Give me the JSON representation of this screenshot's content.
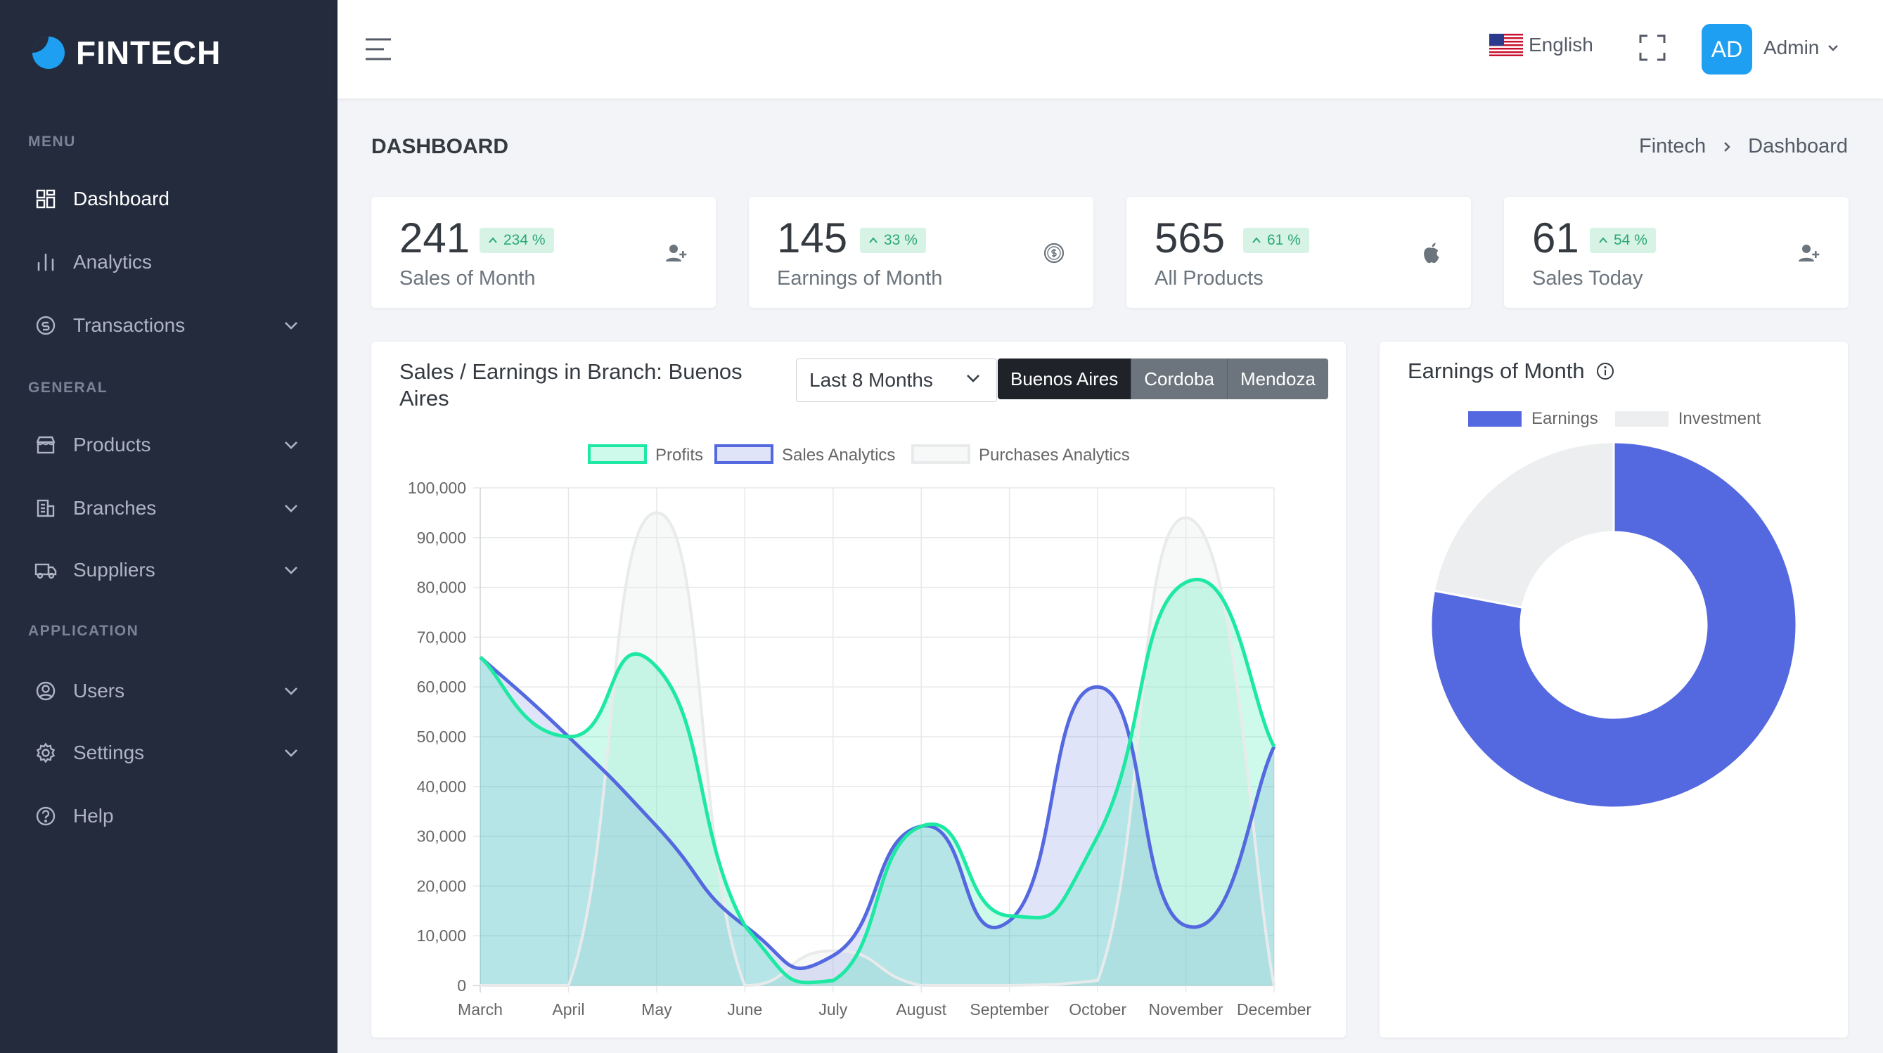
{
  "app": {
    "logo_text": "FINTECH"
  },
  "sidebar": {
    "sections": [
      {
        "title": "MENU"
      },
      {
        "title": "GENERAL"
      },
      {
        "title": "APPLICATION"
      }
    ],
    "items": [
      {
        "label": "Dashboard",
        "icon": "dashboard-icon",
        "active": true,
        "has_children": false
      },
      {
        "label": "Analytics",
        "icon": "analytics-icon",
        "active": false,
        "has_children": false
      },
      {
        "label": "Transactions",
        "icon": "transactions-icon",
        "active": false,
        "has_children": true
      },
      {
        "label": "Products",
        "icon": "products-icon",
        "active": false,
        "has_children": true
      },
      {
        "label": "Branches",
        "icon": "branches-icon",
        "active": false,
        "has_children": true
      },
      {
        "label": "Suppliers",
        "icon": "suppliers-icon",
        "active": false,
        "has_children": true
      },
      {
        "label": "Users",
        "icon": "users-icon",
        "active": false,
        "has_children": true
      },
      {
        "label": "Settings",
        "icon": "settings-icon",
        "active": false,
        "has_children": true
      },
      {
        "label": "Help",
        "icon": "help-icon",
        "active": false,
        "has_children": false
      }
    ]
  },
  "topbar": {
    "language": "English",
    "avatar_initials": "AD",
    "user_name": "Admin"
  },
  "page": {
    "title": "DASHBOARD",
    "breadcrumb": [
      "Fintech",
      "Dashboard"
    ]
  },
  "stats": [
    {
      "value": "241",
      "change": "234 %",
      "label": "Sales of Month",
      "icon": "user-plus-icon"
    },
    {
      "value": "145",
      "change": "33 %",
      "label": "Earnings of Month",
      "icon": "dollar-coin-icon"
    },
    {
      "value": "565",
      "change": "61 %",
      "label": "All Products",
      "icon": "apple-icon"
    },
    {
      "value": "61",
      "change": "54 %",
      "label": "Sales Today",
      "icon": "user-plus-icon"
    }
  ],
  "sales_chart": {
    "title": "Sales / Earnings in Branch: Buenos Aires",
    "range_select": "Last 8 Months",
    "branches": [
      {
        "label": "Buenos Aires",
        "active": true
      },
      {
        "label": "Cordoba",
        "active": false
      },
      {
        "label": "Mendoza",
        "active": false
      }
    ]
  },
  "donut_chart": {
    "title": "Earnings of Month",
    "legend": [
      "Earnings",
      "Investment"
    ]
  },
  "colors": {
    "sidebar_bg": "#232b3d",
    "accent": "#1e9ff2",
    "profits": "#1de9a2",
    "sales": "#5468e0",
    "purchases": "#eceeef",
    "badge_bg": "#d7f3e6",
    "badge_text": "#2aa876"
  },
  "chart_data": [
    {
      "type": "line",
      "title": "",
      "x": [
        "March",
        "April",
        "May",
        "June",
        "July",
        "August",
        "September",
        "October",
        "November",
        "December"
      ],
      "series": [
        {
          "name": "Profits",
          "values": [
            66000,
            50000,
            64000,
            12000,
            1000,
            32000,
            14000,
            30000,
            81000,
            48000
          ]
        },
        {
          "name": "Sales Analytics",
          "values": [
            66000,
            50000,
            32000,
            12000,
            6000,
            32000,
            13000,
            60000,
            12000,
            48000
          ]
        },
        {
          "name": "Purchases Analytics",
          "values": [
            0,
            0,
            95000,
            0,
            7000,
            0,
            0,
            1000,
            94000,
            0
          ]
        }
      ],
      "ylim": [
        0,
        100000
      ],
      "yticks": [
        "0",
        "10,000",
        "20,000",
        "30,000",
        "40,000",
        "50,000",
        "60,000",
        "70,000",
        "80,000",
        "90,000",
        "100,000"
      ],
      "grid": true,
      "legend": "top"
    },
    {
      "type": "pie",
      "labels": [
        "Earnings",
        "Investment"
      ],
      "values": [
        78,
        22
      ],
      "legend": "top"
    }
  ]
}
